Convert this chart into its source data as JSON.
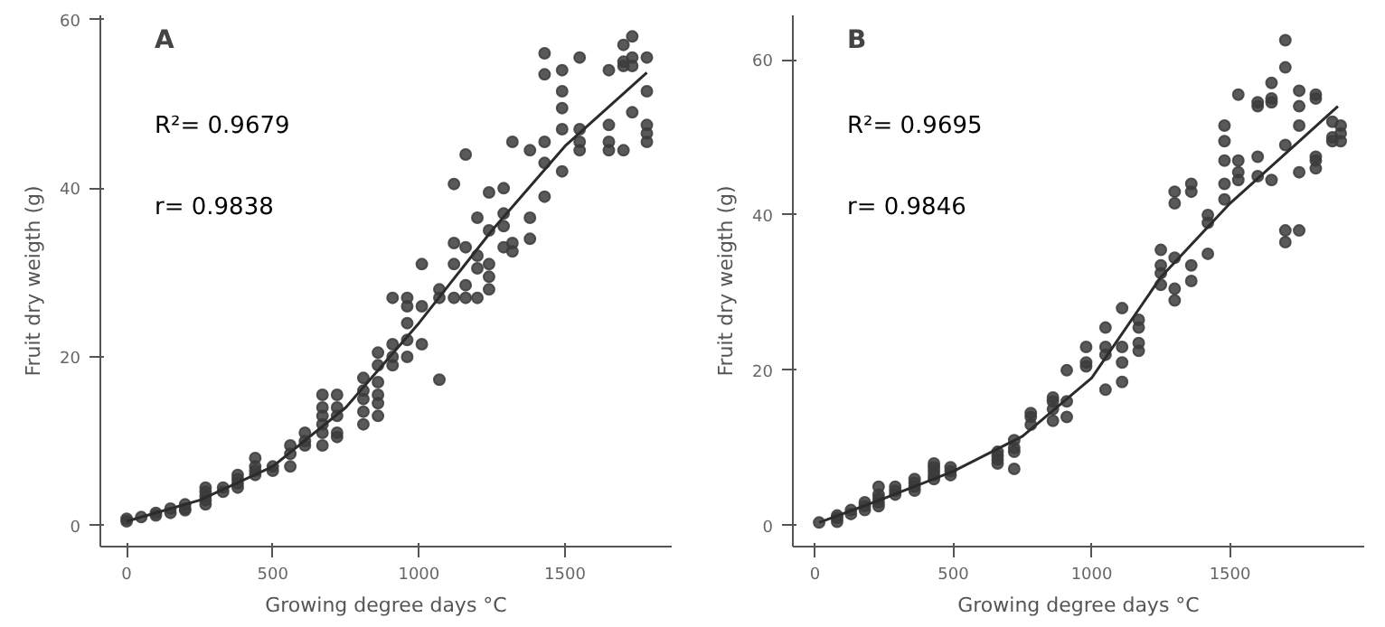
{
  "chart_data": [
    {
      "type": "scatter",
      "title": "A",
      "xlabel": "Growing degree days °C",
      "ylabel": "Fruit dry weigth (g)",
      "annotations": [
        "R²= 0.9679",
        "r= 0.9838"
      ],
      "xlim": [
        -90,
        1865
      ],
      "ylim": [
        -2.5,
        60.5
      ],
      "xticks": [
        0,
        500,
        1000,
        1500
      ],
      "yticks": [
        0,
        20,
        40,
        60
      ],
      "grid": false,
      "series": [
        {
          "marker": "circle",
          "color": "#3c3c3c",
          "x": [
            0,
            0,
            50,
            100,
            100,
            150,
            150,
            200,
            200,
            200,
            270,
            270,
            270,
            270,
            270,
            330,
            330,
            380,
            380,
            380,
            380,
            440,
            440,
            440,
            440,
            500,
            500,
            560,
            560,
            560,
            610,
            610,
            610,
            670,
            670,
            670,
            670,
            670,
            670,
            720,
            720,
            720,
            720,
            720,
            810,
            810,
            810,
            810,
            810,
            860,
            860,
            860,
            860,
            860,
            860,
            910,
            910,
            910,
            910,
            960,
            960,
            960,
            960,
            960,
            1010,
            1010,
            1010,
            1070,
            1070,
            1070,
            1120,
            1120,
            1120,
            1120,
            1160,
            1160,
            1160,
            1160,
            1200,
            1200,
            1200,
            1200,
            1240,
            1240,
            1240,
            1240,
            1240,
            1290,
            1290,
            1290,
            1290,
            1320,
            1320,
            1320,
            1380,
            1380,
            1380,
            1430,
            1430,
            1430,
            1430,
            1430,
            1490,
            1490,
            1490,
            1490,
            1490,
            1550,
            1550,
            1550,
            1550,
            1650,
            1650,
            1650,
            1650,
            1700,
            1700,
            1700,
            1700,
            1730,
            1730,
            1730,
            1730,
            1780,
            1780,
            1780,
            1780,
            1780
          ],
          "values": [
            0.5,
            0.8,
            1,
            1.2,
            1.5,
            1.5,
            2,
            1.8,
            2,
            2.5,
            2.5,
            3,
            3.5,
            4,
            4.5,
            4,
            4.5,
            4.5,
            5,
            5.5,
            6,
            6,
            6.5,
            7,
            8,
            6.5,
            7,
            7,
            8.5,
            9.5,
            9.5,
            10,
            11,
            9.5,
            11,
            12,
            13,
            14,
            15.5,
            10.5,
            11,
            13,
            14,
            15.5,
            12,
            13.5,
            15,
            16,
            17.5,
            13,
            14.5,
            15.5,
            17,
            19,
            20.5,
            19,
            20,
            21.5,
            27,
            20,
            22,
            24,
            26,
            27,
            21.5,
            26,
            31,
            17.3,
            27,
            28,
            27,
            31,
            33.5,
            40.5,
            27,
            28.5,
            33,
            44,
            27,
            30.5,
            32,
            36.5,
            28,
            29.5,
            31,
            35,
            39.5,
            33,
            35.5,
            37,
            40,
            32.5,
            33.5,
            45.5,
            34,
            36.5,
            44.5,
            39,
            43,
            45.5,
            53.5,
            56,
            42,
            47,
            49.5,
            51.5,
            54,
            44.5,
            45.5,
            47,
            55.5,
            44.5,
            45.5,
            47.5,
            54,
            44.5,
            54.5,
            55,
            57,
            49,
            54.5,
            55.5,
            58,
            45.5,
            46.5,
            47.5,
            51.5,
            55.5
          ]
        },
        {
          "type": "line",
          "color": "#2b2b2b",
          "x": [
            0,
            250,
            500,
            750,
            1000,
            1250,
            1500,
            1780
          ],
          "values": [
            0.5,
            3,
            7,
            14,
            24,
            35,
            45,
            53.7
          ]
        }
      ]
    },
    {
      "type": "scatter",
      "title": "B",
      "xlabel": "Growing degree days °C",
      "ylabel": "Fruit dry weigth (g)",
      "annotations": [
        "R²= 0.9695",
        "r= 0.9846"
      ],
      "xlim": [
        -80,
        1985
      ],
      "ylim": [
        -2.7,
        65.7
      ],
      "xticks": [
        0,
        500,
        1000,
        1500
      ],
      "yticks": [
        0,
        20,
        40,
        60
      ],
      "grid": false,
      "series": [
        {
          "marker": "circle",
          "color": "#3c3c3c",
          "x": [
            15,
            80,
            80,
            80,
            130,
            130,
            180,
            180,
            180,
            230,
            230,
            230,
            230,
            230,
            290,
            290,
            290,
            360,
            360,
            360,
            360,
            430,
            430,
            430,
            430,
            430,
            490,
            490,
            490,
            660,
            660,
            660,
            660,
            720,
            720,
            720,
            720,
            780,
            780,
            780,
            860,
            860,
            860,
            860,
            910,
            910,
            910,
            980,
            980,
            980,
            1050,
            1050,
            1050,
            1050,
            1110,
            1110,
            1110,
            1110,
            1170,
            1170,
            1170,
            1170,
            1250,
            1250,
            1250,
            1250,
            1300,
            1300,
            1300,
            1300,
            1300,
            1360,
            1360,
            1360,
            1360,
            1420,
            1420,
            1420,
            1480,
            1480,
            1480,
            1480,
            1480,
            1530,
            1530,
            1530,
            1530,
            1600,
            1600,
            1600,
            1600,
            1650,
            1650,
            1650,
            1650,
            1700,
            1700,
            1700,
            1700,
            1700,
            1750,
            1750,
            1750,
            1750,
            1750,
            1810,
            1810,
            1810,
            1810,
            1810,
            1870,
            1870,
            1870,
            1900,
            1900,
            1900
          ],
          "values": [
            0.4,
            0.5,
            1,
            1.3,
            1.5,
            2,
            2,
            2.5,
            3,
            2.5,
            3,
            3.5,
            4,
            5,
            4,
            4.5,
            5,
            4.5,
            5,
            5.5,
            6,
            6,
            6.5,
            7,
            7.5,
            8,
            6.5,
            7,
            7.5,
            8,
            8.5,
            9,
            9.5,
            7.3,
            9.5,
            10,
            11,
            13,
            14,
            14.5,
            13.5,
            15,
            16,
            16.5,
            14,
            16,
            20,
            20.5,
            21,
            23,
            17.5,
            22,
            23,
            25.5,
            18.5,
            21,
            23,
            28,
            22.5,
            23.5,
            25.5,
            26.5,
            31,
            32.5,
            33.5,
            35.5,
            29,
            30.5,
            34.5,
            41.5,
            43,
            31.5,
            33.5,
            43,
            44,
            35,
            39,
            40,
            42,
            44,
            47,
            49.5,
            51.5,
            44.5,
            45.5,
            47,
            55.5,
            45,
            47.5,
            54,
            54.5,
            44.5,
            54.5,
            55,
            57,
            36.5,
            38,
            49,
            59,
            62.5,
            38,
            45.5,
            51.5,
            54,
            56,
            46,
            47,
            47.5,
            55,
            55.5,
            49.5,
            50,
            52,
            49.5,
            50.5,
            51.5
          ]
        },
        {
          "type": "line",
          "color": "#2b2b2b",
          "x": [
            15,
            250,
            500,
            750,
            1000,
            1250,
            1500,
            1750,
            1890
          ],
          "values": [
            0.4,
            3.5,
            7,
            11.5,
            19,
            32,
            41.5,
            49.5,
            54
          ]
        }
      ]
    }
  ]
}
